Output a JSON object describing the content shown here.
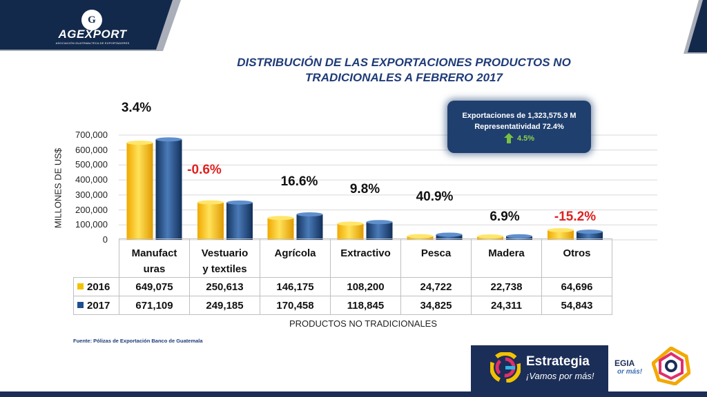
{
  "header": {
    "logo_word": "AGEXPORT",
    "logo_sub": "ASOCIACIÓN GUATEMALTECA DE EXPORTADORES",
    "logo_mark": "G"
  },
  "title_line1": "DISTRIBUCIÓN  DE LAS EXPORTACIONES  PRODUCTOS NO",
  "title_line2": "TRADICIONALES A FEBRERO 2017",
  "callout": {
    "line1": "Exportaciones de 1,323,575.9 M",
    "line2": "Representatividad 72.4%",
    "growth": "4.5%",
    "growth_icon": "up-arrow-icon"
  },
  "chart_data": {
    "type": "bar",
    "ylabel": "MILLONES DE US$",
    "xlabel": "PRODUCTOS NO TRADICIONALES",
    "ylim": [
      0,
      700000
    ],
    "yticks": [
      "700,000",
      "600,000",
      "500,000",
      "400,000",
      "300,000",
      "200,000",
      "100,000",
      "0"
    ],
    "ytick_values": [
      700000,
      600000,
      500000,
      400000,
      300000,
      200000,
      100000,
      0
    ],
    "grid": true,
    "categories": [
      {
        "line1": "Manufact",
        "line2": "uras"
      },
      {
        "line1": "Vestuario",
        "line2": "y textiles"
      },
      {
        "line1": "Agrícola",
        "line2": ""
      },
      {
        "line1": "Extractivo",
        "line2": ""
      },
      {
        "line1": "Pesca",
        "line2": ""
      },
      {
        "line1": "Madera",
        "line2": ""
      },
      {
        "line1": "Otros",
        "line2": ""
      }
    ],
    "series": [
      {
        "name": "2016",
        "color": "#f2c200",
        "values": [
          649075,
          250613,
          146175,
          108200,
          24722,
          22738,
          64696
        ],
        "labels": [
          "649,075",
          "250,613",
          "146,175",
          "108,200",
          "24,722",
          "22,738",
          "64,696"
        ]
      },
      {
        "name": "2017",
        "color": "#1f4e8c",
        "values": [
          671109,
          249185,
          170458,
          118845,
          34825,
          24311,
          54843
        ],
        "labels": [
          "671,109",
          "249,185",
          "170,458",
          "118,845",
          "34,825",
          "24,311",
          "54,843"
        ]
      }
    ],
    "growth_annotations": [
      {
        "text": "3.4%",
        "color": "#111111"
      },
      {
        "text": "-0.6%",
        "color": "#e02020"
      },
      {
        "text": "16.6%",
        "color": "#111111"
      },
      {
        "text": "9.8%",
        "color": "#111111"
      },
      {
        "text": "40.9%",
        "color": "#111111"
      },
      {
        "text": "6.9%",
        "color": "#111111"
      },
      {
        "text": "-15.2%",
        "color": "#e02020"
      }
    ]
  },
  "source": "Fuente: Pólizas de Exportación Banco de Guatemala",
  "footer": {
    "strategy_title": "Estrategia",
    "strategy_sub": "¡Vamos por más!",
    "fragment_1": "EGIA",
    "fragment_2": "or más!"
  }
}
